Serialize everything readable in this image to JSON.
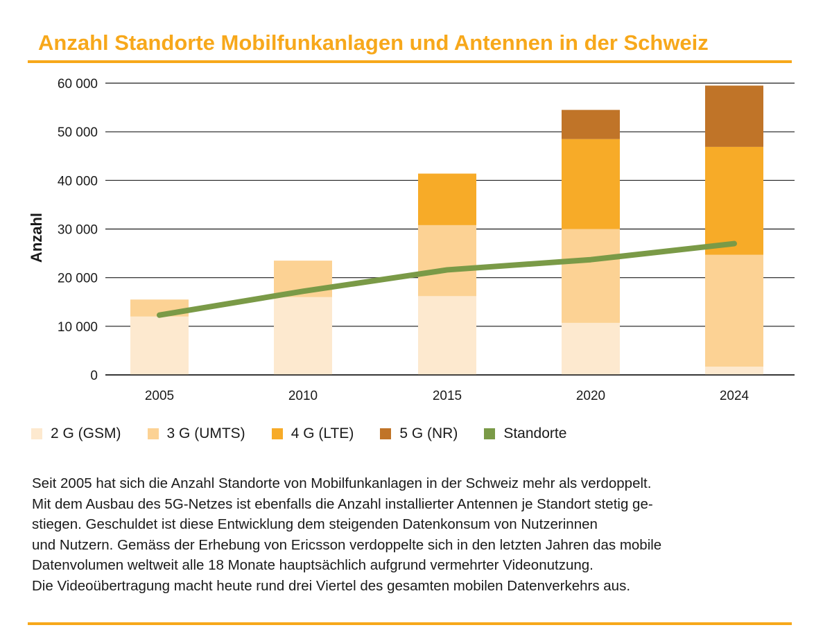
{
  "title": "Anzahl Standorte Mobilfunkanlagen und Antennen in der Schweiz",
  "colors": {
    "accent": "#f7a81b",
    "gsm": "#fde9cf",
    "umts": "#fcd294",
    "lte": "#f7ab28",
    "nr": "#c07428",
    "standorte": "#7a9a47"
  },
  "chart_data": {
    "type": "bar",
    "stacked": true,
    "title": "Anzahl Standorte Mobilfunkanlagen und Antennen in der Schweiz",
    "xlabel": "",
    "ylabel": "Anzahl",
    "ylim": [
      0,
      60000
    ],
    "grid": true,
    "categories": [
      "2005",
      "2010",
      "2015",
      "2020",
      "2024"
    ],
    "y_ticks": [
      0,
      10000,
      20000,
      30000,
      40000,
      50000,
      60000
    ],
    "y_tick_labels": [
      "0",
      "10 000",
      "20 000",
      "30 000",
      "40 000",
      "50 000",
      "60 000"
    ],
    "series": [
      {
        "name": "2 G (GSM)",
        "kind": "bar",
        "values": [
          12000,
          16000,
          16200,
          10700,
          1700
        ]
      },
      {
        "name": "3 G (UMTS)",
        "kind": "bar",
        "values": [
          3500,
          7500,
          14600,
          19300,
          23000
        ]
      },
      {
        "name": "4 G (LTE)",
        "kind": "bar",
        "values": [
          0,
          0,
          10600,
          18500,
          22200
        ]
      },
      {
        "name": "5 G (NR)",
        "kind": "bar",
        "values": [
          0,
          0,
          0,
          6000,
          12600
        ]
      },
      {
        "name": "Standorte",
        "kind": "line",
        "values": [
          12300,
          17200,
          21600,
          23700,
          27000
        ]
      }
    ]
  },
  "legend": [
    {
      "label": "2 G (GSM)",
      "color": "#fde9cf"
    },
    {
      "label": "3 G (UMTS)",
      "color": "#fcd294"
    },
    {
      "label": "4 G (LTE)",
      "color": "#f7ab28"
    },
    {
      "label": "5 G (NR)",
      "color": "#c07428"
    },
    {
      "label": "Standorte",
      "color": "#7a9a47"
    }
  ],
  "body_lines": [
    "Seit 2005 hat sich die Anzahl Standorte von Mobilfunkanlagen in der Schweiz mehr als verdoppelt.",
    "Mit dem Ausbau des 5G-Netzes ist ebenfalls die Anzahl installierter Antennen je Standort stetig ge-",
    "stiegen. Geschuldet ist diese Entwicklung dem steigenden Datenkonsum von Nutzerinnen",
    "und Nutzern. Gemäss der Erhebung von Ericsson verdoppelte sich in den letzten Jahren das mobile",
    "Datenvolumen weltweit alle 18 Monate hauptsächlich aufgrund vermehrter Videonutzung.",
    "Die Videoübertragung macht heute rund drei Viertel des gesamten mobilen Datenverkehrs aus."
  ]
}
